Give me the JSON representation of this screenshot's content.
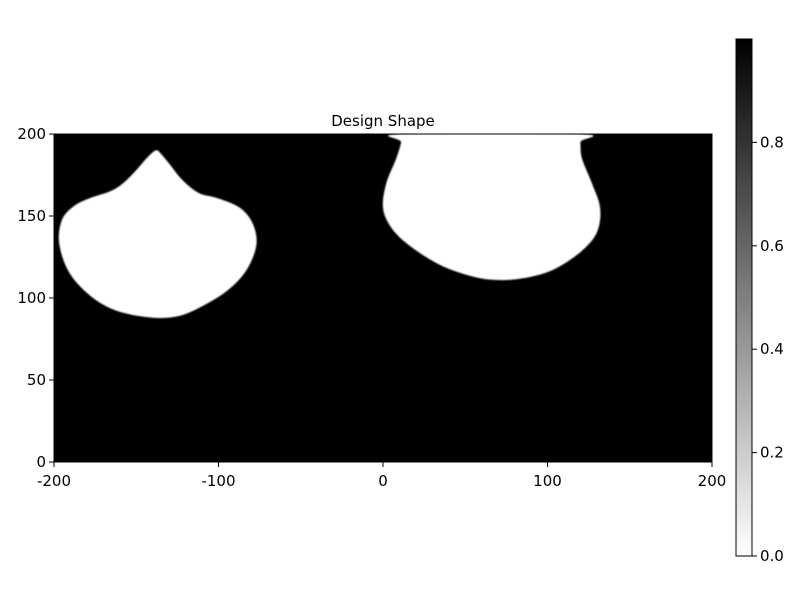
{
  "chart_data": {
    "type": "heatmap",
    "title": "Design Shape",
    "xlabel": "",
    "ylabel": "",
    "xlim": [
      -200,
      200
    ],
    "ylim": [
      0,
      200
    ],
    "x_ticks": [
      -200,
      -100,
      0,
      100,
      200
    ],
    "x_tick_labels": [
      "-200",
      "-100",
      "0",
      "100",
      "200"
    ],
    "y_ticks": [
      0,
      50,
      100,
      150,
      200
    ],
    "y_tick_labels": [
      "0",
      "50",
      "100",
      "150",
      "200"
    ],
    "grid": false,
    "colormap": {
      "name": "grayscale",
      "low_color": "#ffffff",
      "high_color": "#000000",
      "range": [
        0.0,
        1.0
      ],
      "ticks": [
        0.0,
        0.2,
        0.4,
        0.6,
        0.8
      ],
      "tick_labels": [
        "0.0",
        "0.2",
        "0.4",
        "0.6",
        "0.8"
      ],
      "placement": "right"
    },
    "background_value": 1.0,
    "regions": [
      {
        "value": 0.0,
        "boundary": [
          [
            -138,
            190
          ],
          [
            -143,
            186
          ],
          [
            -150,
            178
          ],
          [
            -158,
            170
          ],
          [
            -166,
            165
          ],
          [
            -178,
            161
          ],
          [
            -188,
            156
          ],
          [
            -195,
            148
          ],
          [
            -197,
            135
          ],
          [
            -193,
            120
          ],
          [
            -185,
            108
          ],
          [
            -172,
            97
          ],
          [
            -158,
            91
          ],
          [
            -140,
            88
          ],
          [
            -124,
            89
          ],
          [
            -108,
            96
          ],
          [
            -94,
            105
          ],
          [
            -83,
            117
          ],
          [
            -77,
            132
          ],
          [
            -79,
            145
          ],
          [
            -87,
            155
          ],
          [
            -101,
            161
          ],
          [
            -112,
            164
          ],
          [
            -122,
            172
          ],
          [
            -130,
            182
          ],
          [
            -135,
            188
          ]
        ]
      },
      {
        "value": 0.0,
        "boundary": [
          [
            11,
            200
          ],
          [
            11,
            195
          ],
          [
            8,
            185
          ],
          [
            2,
            170
          ],
          [
            0,
            155
          ],
          [
            5,
            143
          ],
          [
            16,
            132
          ],
          [
            35,
            120
          ],
          [
            55,
            113
          ],
          [
            70,
            111
          ],
          [
            85,
            112
          ],
          [
            103,
            117
          ],
          [
            120,
            128
          ],
          [
            130,
            140
          ],
          [
            132,
            155
          ],
          [
            127,
            170
          ],
          [
            121,
            185
          ],
          [
            120,
            195
          ],
          [
            120,
            200
          ]
        ]
      }
    ]
  }
}
